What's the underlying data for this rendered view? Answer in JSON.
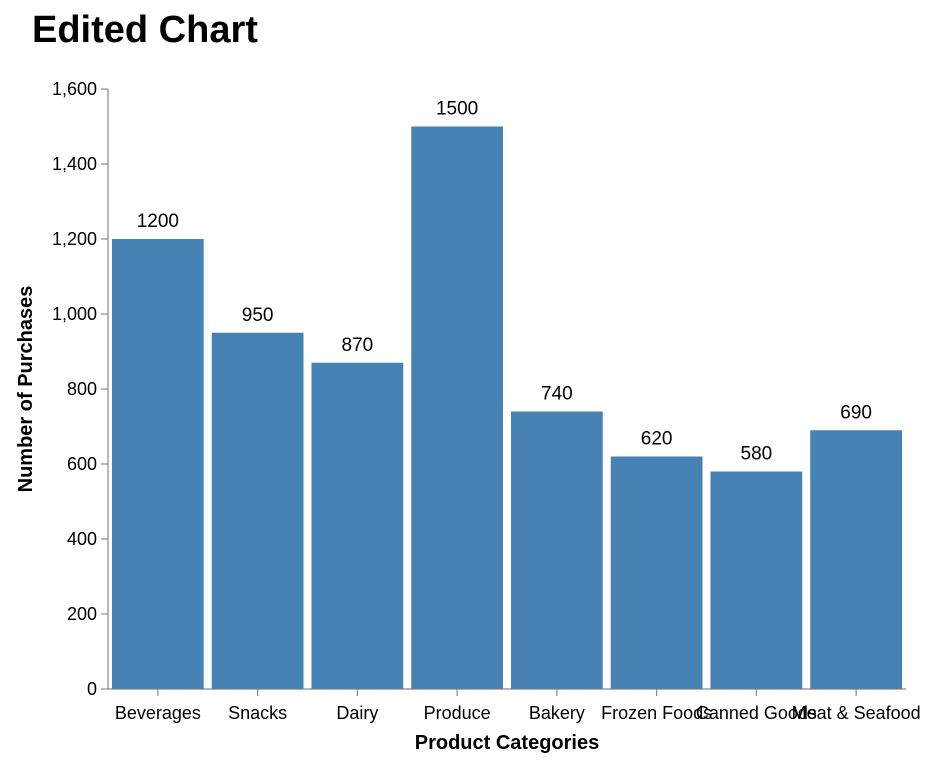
{
  "chart_data": {
    "type": "bar",
    "title": "Edited Chart",
    "xlabel": "Product Categories",
    "ylabel": "Number of Purchases",
    "categories": [
      "Beverages",
      "Snacks",
      "Dairy",
      "Produce",
      "Bakery",
      "Frozen Foods",
      "Canned Goods",
      "Meat & Seafood"
    ],
    "values": [
      1200,
      950,
      870,
      1500,
      740,
      620,
      580,
      690
    ],
    "ylim": [
      0,
      1600
    ],
    "yticks": [
      0,
      200,
      400,
      600,
      800,
      1000,
      1200,
      1400,
      1600
    ],
    "ytick_labels": [
      "0",
      "200",
      "400",
      "600",
      "800",
      "1,000",
      "1,200",
      "1,400",
      "1,600"
    ],
    "data_labels": [
      "1200",
      "950",
      "870",
      "1500",
      "740",
      "620",
      "580",
      "690"
    ],
    "bar_color": "#4682b4",
    "grid": false,
    "legend": "none"
  }
}
